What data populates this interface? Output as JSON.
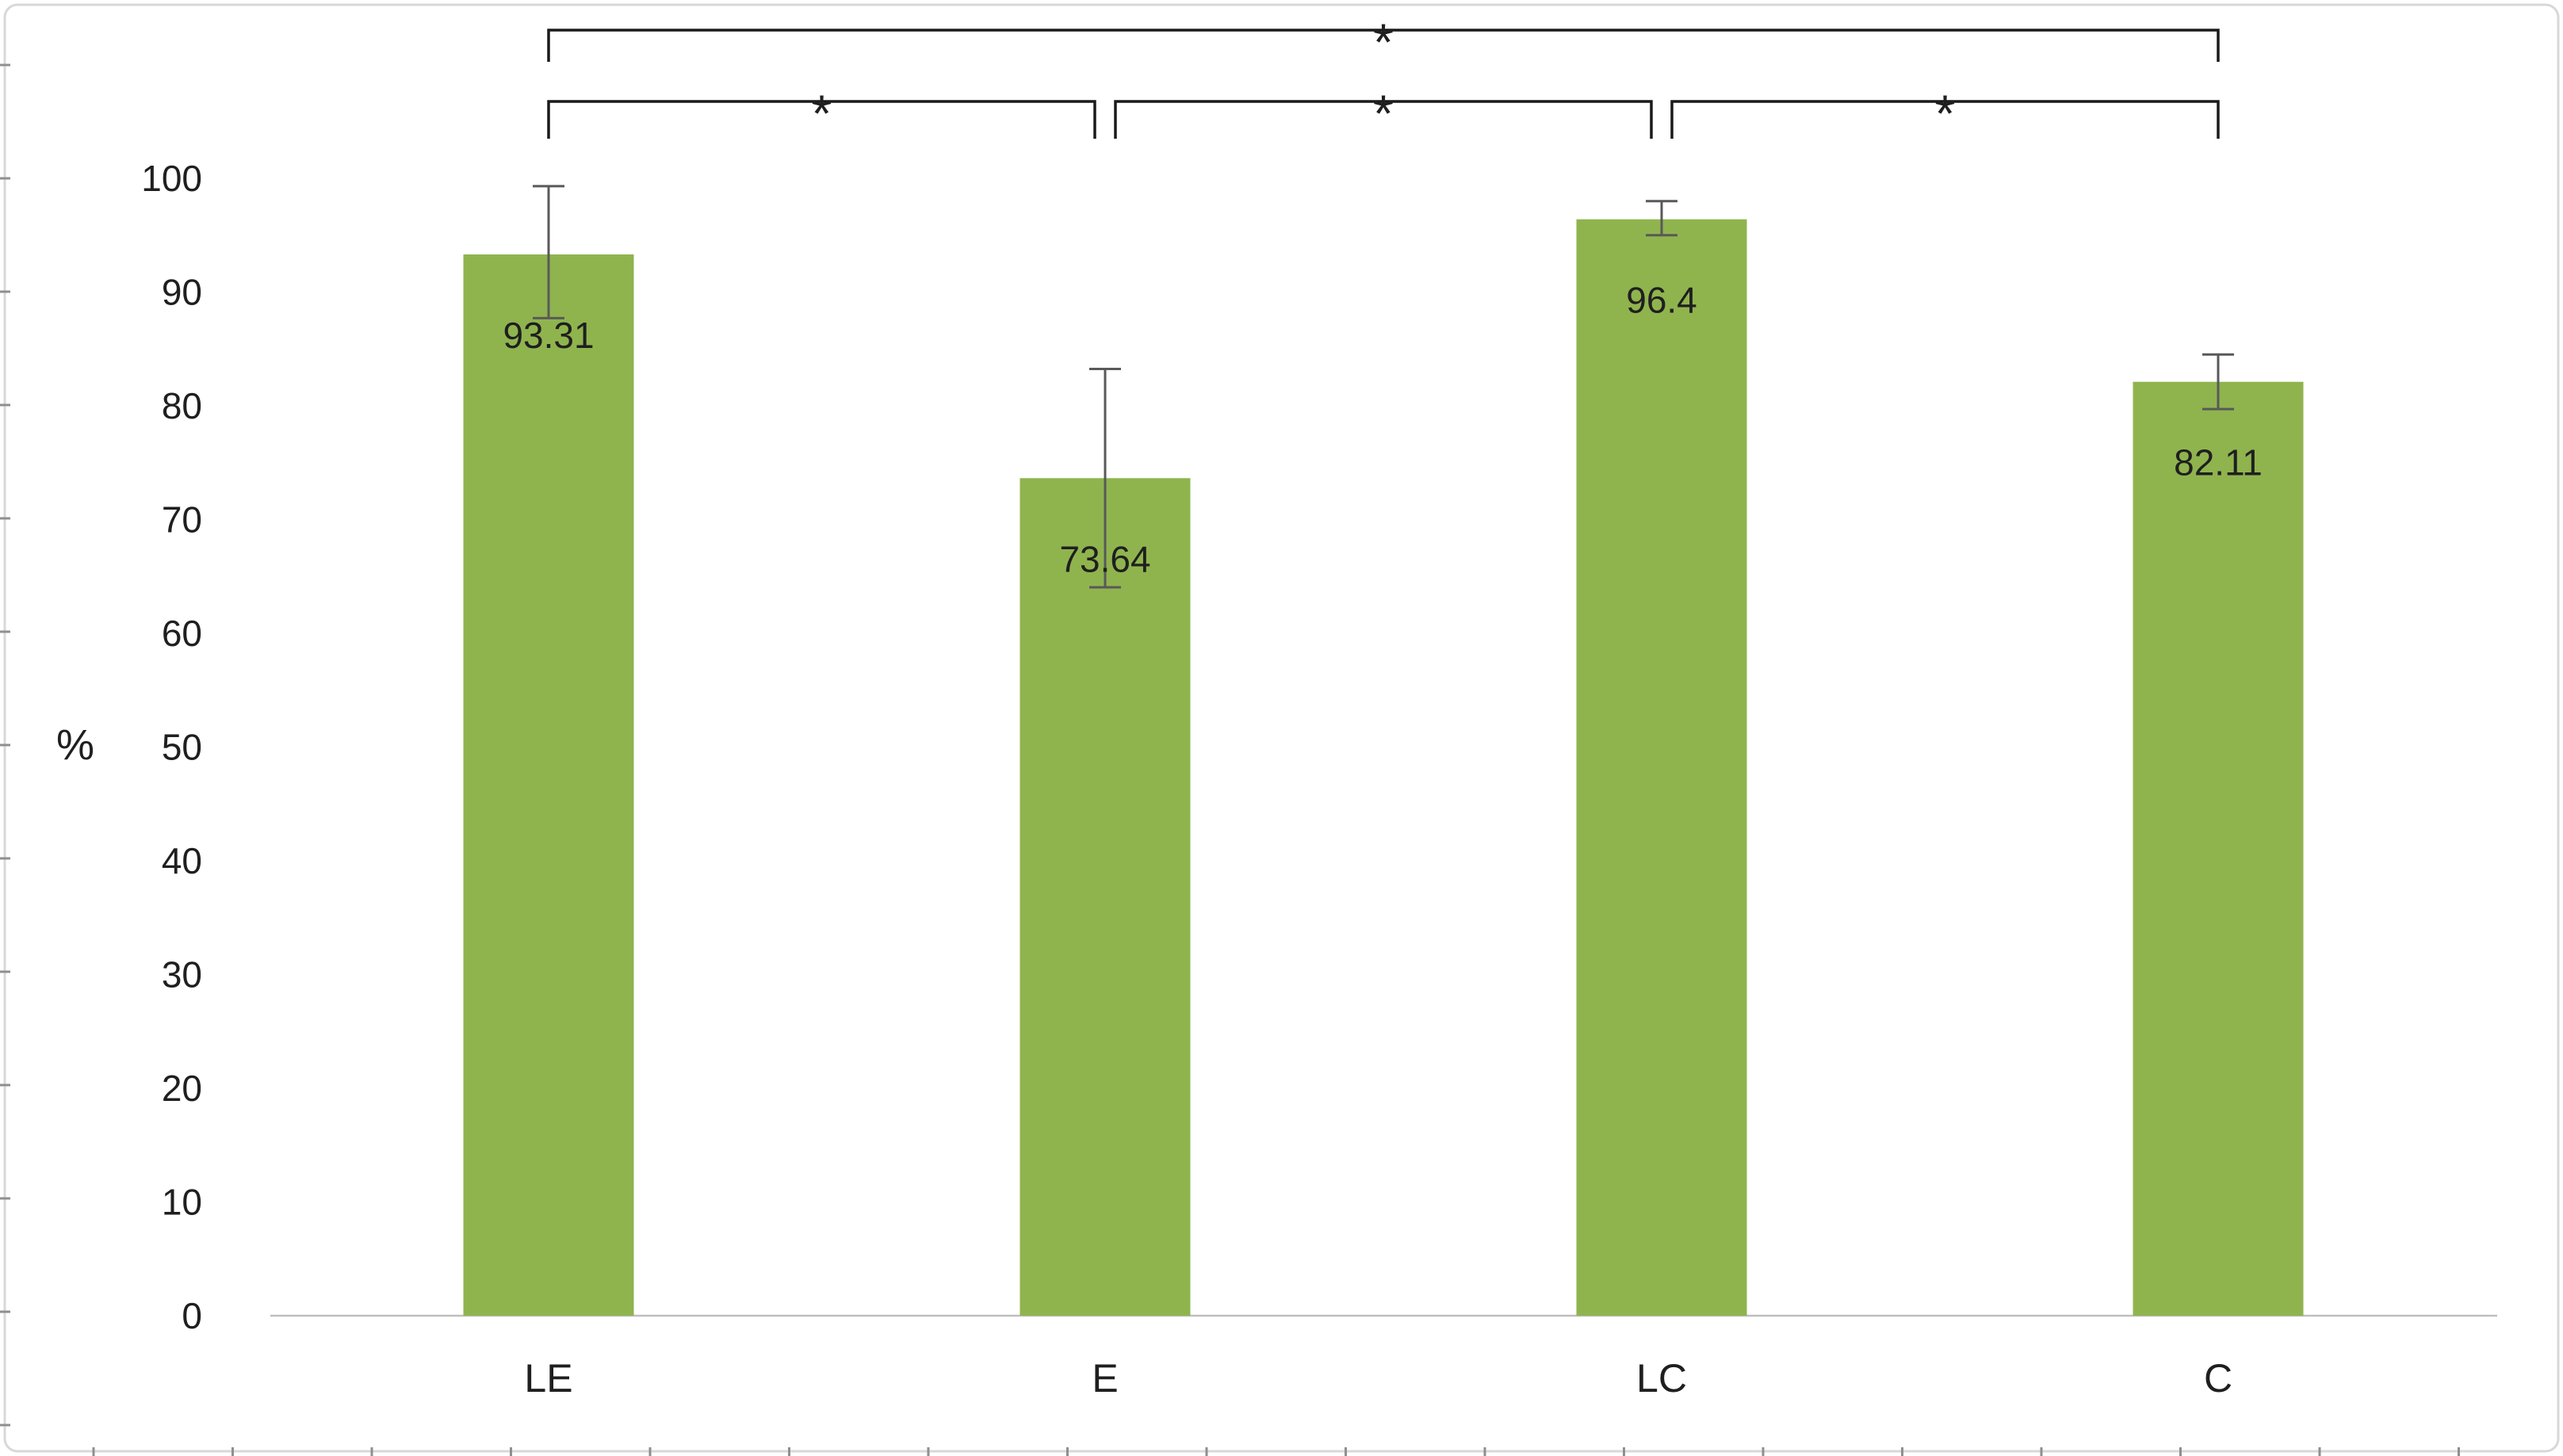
{
  "figure": {
    "background": "#ffffff",
    "border_color": "#d8d8d8"
  },
  "chart_data": {
    "type": "bar",
    "title": "",
    "xlabel": "",
    "ylabel": "%",
    "categories": [
      "LE",
      "E",
      "LC",
      "C"
    ],
    "values": [
      93.31,
      73.64,
      96.4,
      82.11
    ],
    "data_labels": [
      "93.31",
      "73.64",
      "96.4",
      "82.11"
    ],
    "error_plus": [
      6.0,
      9.6,
      1.6,
      2.4
    ],
    "error_minus": [
      5.6,
      9.6,
      1.4,
      2.4
    ],
    "ylim": [
      0,
      100
    ],
    "ytick_step": 10,
    "yticks": [
      0,
      10,
      20,
      30,
      40,
      50,
      60,
      70,
      80,
      90,
      100
    ],
    "grid": false,
    "legend": false,
    "bar_color": "#8FB44E",
    "error_bar_color": "#595959",
    "axis_color": "#BFBFBF",
    "significance_brackets": [
      {
        "from": "LE",
        "to": "C",
        "label": "*",
        "level": 1
      },
      {
        "from": "LE",
        "to": "E",
        "label": "*",
        "level": 2
      },
      {
        "from": "E",
        "to": "LC",
        "label": "*",
        "level": 2
      },
      {
        "from": "LC",
        "to": "C",
        "label": "*",
        "level": 2
      }
    ]
  }
}
